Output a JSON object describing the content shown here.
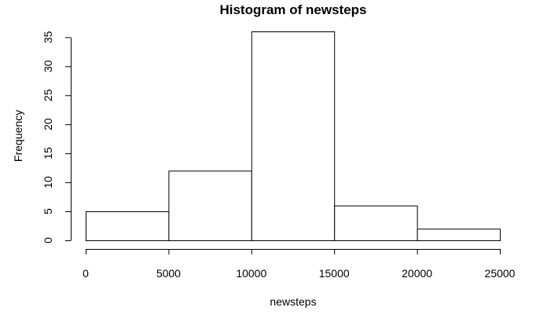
{
  "chart_data": {
    "type": "bar",
    "title": "Histogram of newsteps",
    "xlabel": "newsteps",
    "ylabel": "Frequency",
    "bins": [
      {
        "start": 0,
        "end": 5000,
        "count": 5
      },
      {
        "start": 5000,
        "end": 10000,
        "count": 12
      },
      {
        "start": 10000,
        "end": 15000,
        "count": 36
      },
      {
        "start": 15000,
        "end": 20000,
        "count": 6
      },
      {
        "start": 20000,
        "end": 25000,
        "count": 2
      }
    ],
    "x_ticks": [
      0,
      5000,
      10000,
      15000,
      20000,
      25000
    ],
    "y_ticks": [
      0,
      5,
      10,
      15,
      20,
      25,
      30,
      35
    ],
    "xlim": [
      0,
      25000
    ],
    "ylim": [
      0,
      36
    ],
    "grid": false,
    "legend": "none",
    "colors": {
      "bar_fill": "#ffffff",
      "bar_stroke": "#000000"
    }
  }
}
